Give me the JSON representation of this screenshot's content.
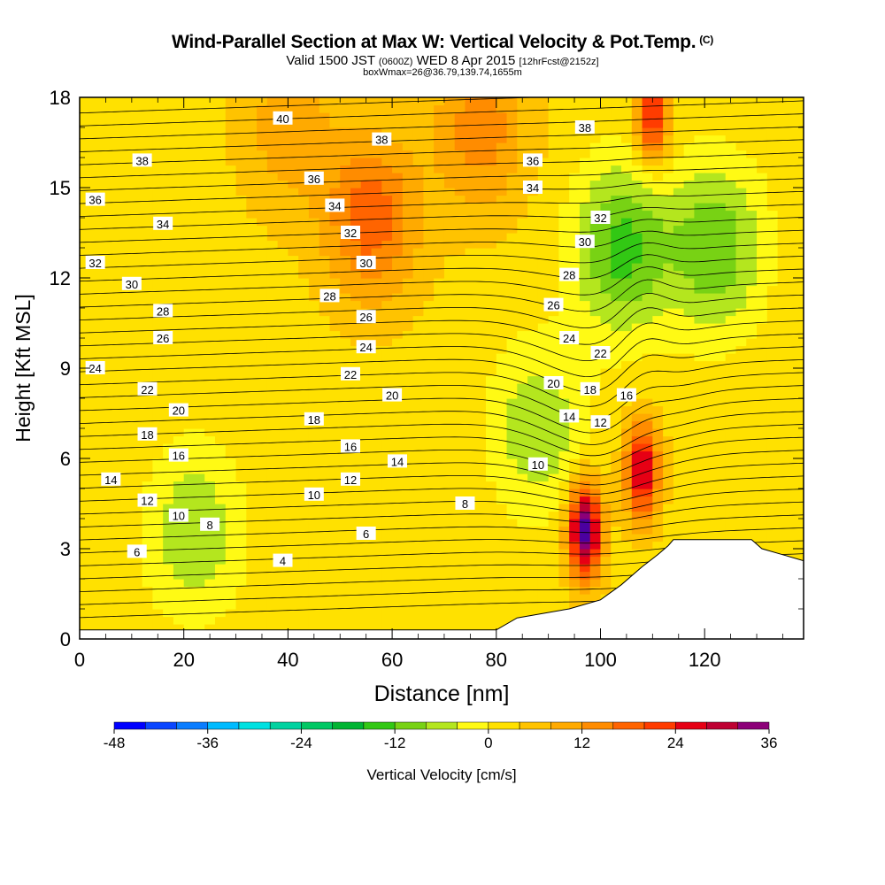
{
  "title": {
    "main": "Wind-Parallel Section at Max W: Vertical Velocity & Pot.Temp.",
    "copyright": "(C)",
    "valid_prefix": "Valid 1500 JST",
    "valid_utc": "(0600Z)",
    "valid_date": "WED 8 Apr 2015",
    "forecast": "[12hrFcst@2152z]",
    "box_info": "boxWmax=26@36.79,139.74,1655m"
  },
  "chart_data": {
    "type": "heatmap",
    "xlabel": "Distance [nm]",
    "ylabel": "Height [Kft MSL]",
    "xlim": [
      0,
      139
    ],
    "ylim": [
      0,
      18
    ],
    "x_ticks": [
      0,
      20,
      40,
      60,
      80,
      100,
      120
    ],
    "y_ticks": [
      0,
      3,
      6,
      9,
      12,
      15,
      18
    ],
    "colorbar": {
      "label": "Vertical Velocity [cm/s]",
      "ticks": [
        -48,
        -36,
        -24,
        -12,
        0,
        12,
        24,
        36
      ],
      "levels": [
        -48,
        -44,
        -40,
        -36,
        -32,
        -28,
        -24,
        -20,
        -16,
        -12,
        -8,
        -4,
        0,
        4,
        8,
        12,
        16,
        20,
        24,
        28,
        32,
        36
      ],
      "colors": [
        "#0000ff",
        "#0a46ff",
        "#0a7dff",
        "#00bbff",
        "#00e1e1",
        "#00d2a0",
        "#00c864",
        "#00b432",
        "#32c814",
        "#78d214",
        "#b4e61e",
        "#fffa14",
        "#ffe100",
        "#ffc300",
        "#ffaa00",
        "#ff8c00",
        "#ff6400",
        "#ff3c00",
        "#e60014",
        "#be0032",
        "#8c0078",
        "#4b00a0"
      ]
    },
    "velocity_centers": [
      {
        "x": 97,
        "y": 3.6,
        "value": 36
      },
      {
        "x": 108,
        "y": 5.6,
        "value": 28
      },
      {
        "x": 110,
        "y": 17.5,
        "value": 24
      },
      {
        "x": 56,
        "y": 14,
        "value": 16
      },
      {
        "x": 77,
        "y": 17,
        "value": 12
      },
      {
        "x": 40,
        "y": 17,
        "value": 8
      },
      {
        "x": 104,
        "y": 13,
        "value": -16
      },
      {
        "x": 122,
        "y": 13,
        "value": -14
      },
      {
        "x": 88,
        "y": 7,
        "value": -10
      },
      {
        "x": 22,
        "y": 3.6,
        "value": -10
      }
    ],
    "terrain": [
      [
        0,
        0.3
      ],
      [
        80,
        0.3
      ],
      [
        84,
        0.7
      ],
      [
        94,
        1.0
      ],
      [
        100,
        1.3
      ],
      [
        104,
        1.8
      ],
      [
        108,
        2.4
      ],
      [
        111,
        2.8
      ],
      [
        113,
        3.1
      ],
      [
        114,
        3.3
      ],
      [
        129,
        3.3
      ],
      [
        131,
        3.0
      ],
      [
        135,
        2.8
      ],
      [
        139,
        2.6
      ]
    ],
    "theta_labels": [
      {
        "text": "40",
        "x": 39,
        "y": 17.3
      },
      {
        "text": "38",
        "x": 58,
        "y": 16.6
      },
      {
        "text": "38",
        "x": 97,
        "y": 17.0
      },
      {
        "text": "38",
        "x": 12,
        "y": 15.9
      },
      {
        "text": "36",
        "x": 45,
        "y": 15.3
      },
      {
        "text": "36",
        "x": 87,
        "y": 15.9
      },
      {
        "text": "36",
        "x": 3,
        "y": 14.6
      },
      {
        "text": "34",
        "x": 49,
        "y": 14.4
      },
      {
        "text": "34",
        "x": 87,
        "y": 15.0
      },
      {
        "text": "34",
        "x": 16,
        "y": 13.8
      },
      {
        "text": "32",
        "x": 52,
        "y": 13.5
      },
      {
        "text": "32",
        "x": 100,
        "y": 14.0
      },
      {
        "text": "32",
        "x": 3,
        "y": 12.5
      },
      {
        "text": "30",
        "x": 55,
        "y": 12.5
      },
      {
        "text": "30",
        "x": 97,
        "y": 13.2
      },
      {
        "text": "30",
        "x": 10,
        "y": 11.8
      },
      {
        "text": "28",
        "x": 48,
        "y": 11.4
      },
      {
        "text": "28",
        "x": 94,
        "y": 12.1
      },
      {
        "text": "28",
        "x": 16,
        "y": 10.9
      },
      {
        "text": "26",
        "x": 55,
        "y": 10.7
      },
      {
        "text": "26",
        "x": 91,
        "y": 11.1
      },
      {
        "text": "26",
        "x": 16,
        "y": 10.0
      },
      {
        "text": "24",
        "x": 55,
        "y": 9.7
      },
      {
        "text": "24",
        "x": 94,
        "y": 10.0
      },
      {
        "text": "24",
        "x": 3,
        "y": 9.0
      },
      {
        "text": "22",
        "x": 52,
        "y": 8.8
      },
      {
        "text": "22",
        "x": 100,
        "y": 9.5
      },
      {
        "text": "22",
        "x": 13,
        "y": 8.3
      },
      {
        "text": "20",
        "x": 60,
        "y": 8.1
      },
      {
        "text": "20",
        "x": 91,
        "y": 8.5
      },
      {
        "text": "20",
        "x": 19,
        "y": 7.6
      },
      {
        "text": "18",
        "x": 45,
        "y": 7.3
      },
      {
        "text": "18",
        "x": 98,
        "y": 8.3
      },
      {
        "text": "16",
        "x": 105,
        "y": 8.1
      },
      {
        "text": "18",
        "x": 13,
        "y": 6.8
      },
      {
        "text": "16",
        "x": 52,
        "y": 6.4
      },
      {
        "text": "16",
        "x": 19,
        "y": 6.1
      },
      {
        "text": "14",
        "x": 61,
        "y": 5.9
      },
      {
        "text": "14",
        "x": 94,
        "y": 7.4
      },
      {
        "text": "12",
        "x": 100,
        "y": 7.2
      },
      {
        "text": "14",
        "x": 6,
        "y": 5.3
      },
      {
        "text": "12",
        "x": 52,
        "y": 5.3
      },
      {
        "text": "10",
        "x": 88,
        "y": 5.8
      },
      {
        "text": "12",
        "x": 13,
        "y": 4.6
      },
      {
        "text": "10",
        "x": 45,
        "y": 4.8
      },
      {
        "text": "8",
        "x": 74,
        "y": 4.5
      },
      {
        "text": "10",
        "x": 19,
        "y": 4.1
      },
      {
        "text": "8",
        "x": 25,
        "y": 3.8
      },
      {
        "text": "6",
        "x": 55,
        "y": 3.5
      },
      {
        "text": "6",
        "x": 11,
        "y": 2.9
      },
      {
        "text": "4",
        "x": 39,
        "y": 2.6
      }
    ]
  }
}
